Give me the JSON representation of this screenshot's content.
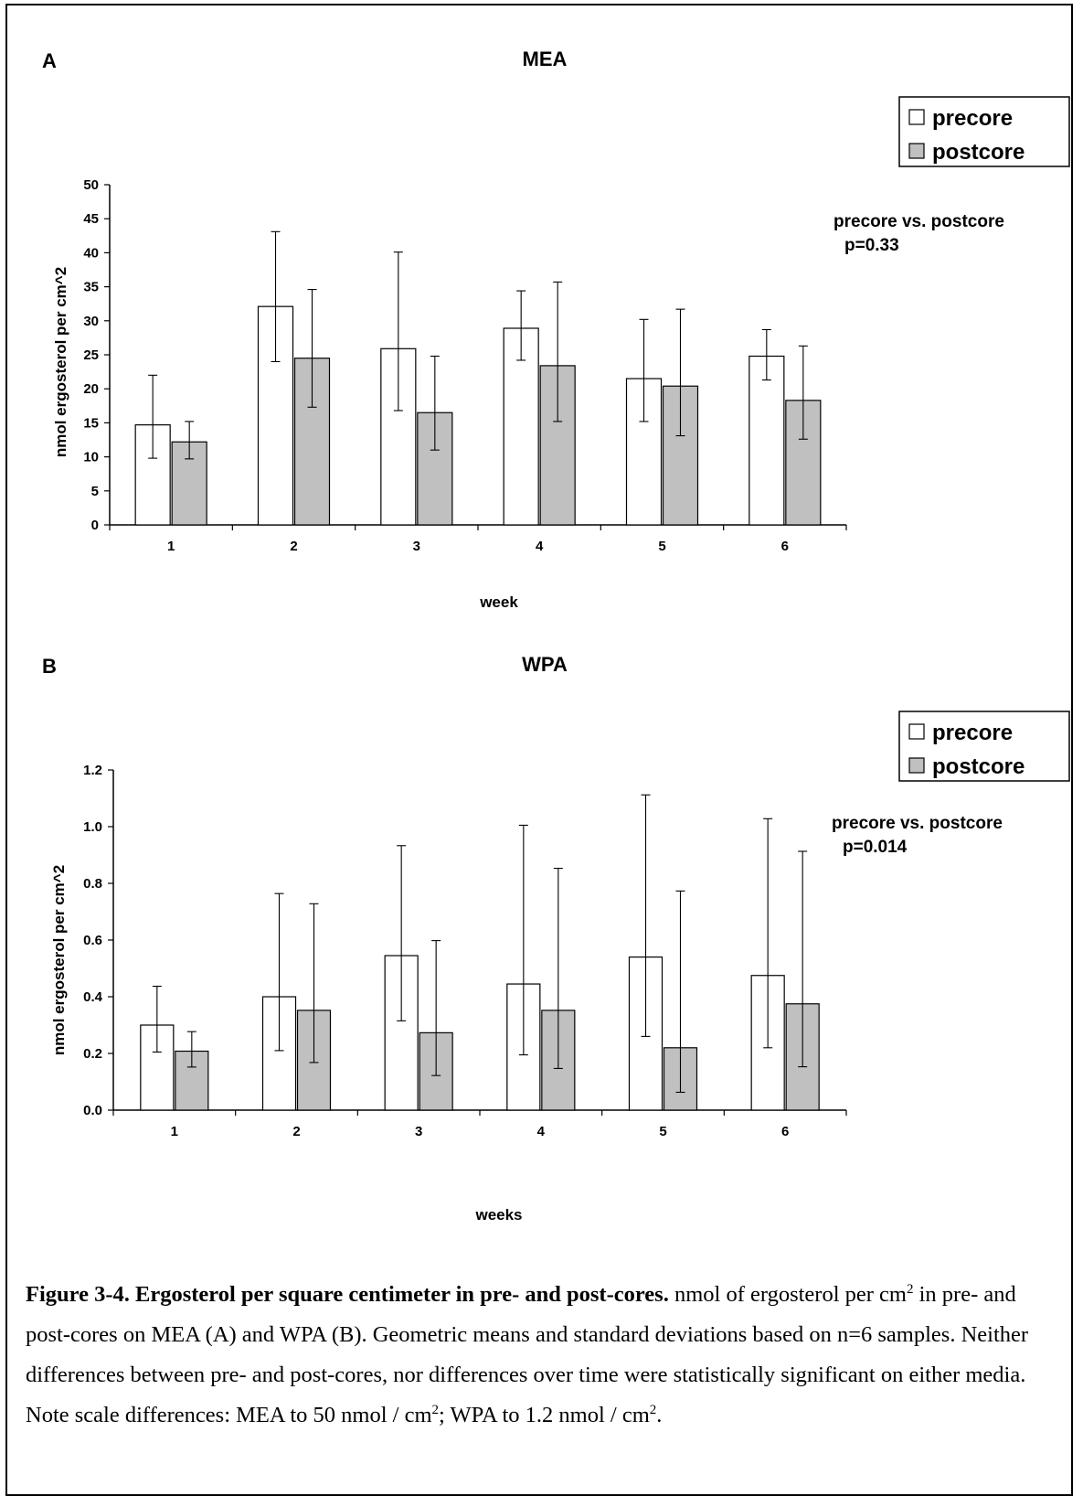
{
  "colors": {
    "precore": "#ffffff",
    "postcore": "#c0c0c0",
    "outline": "#000000"
  },
  "panels": [
    {
      "letter": "A",
      "legend": [
        "precore",
        "postcore"
      ],
      "stat": {
        "line1": "precore vs. postcore",
        "line2": "p=0.33"
      }
    },
    {
      "letter": "B",
      "legend": [
        "precore",
        "postcore"
      ],
      "stat": {
        "line1": "precore vs. postcore",
        "line2": "p=0.014"
      }
    }
  ],
  "chart_data": [
    {
      "type": "bar",
      "title": "MEA",
      "xlabel": "week",
      "ylabel": "nmol ergosterol per cm^2",
      "ylim": [
        0,
        50
      ],
      "yticks": [
        "0",
        "5",
        "10",
        "15",
        "20",
        "25",
        "30",
        "35",
        "40",
        "45",
        "50"
      ],
      "categories": [
        "1",
        "2",
        "3",
        "4",
        "5",
        "6"
      ],
      "legend_position": "top-right",
      "grid": false,
      "series": [
        {
          "name": "precore",
          "values": [
            14.7,
            32.1,
            25.9,
            28.9,
            21.5,
            24.8
          ],
          "err_low": [
            9.8,
            24.0,
            16.8,
            24.2,
            15.2,
            21.3
          ],
          "err_high": [
            22.0,
            43.1,
            40.1,
            34.4,
            30.2,
            28.7
          ]
        },
        {
          "name": "postcore",
          "values": [
            12.2,
            24.5,
            16.5,
            23.4,
            20.4,
            18.3
          ],
          "err_low": [
            9.7,
            17.3,
            11.0,
            15.2,
            13.1,
            12.6
          ],
          "err_high": [
            15.2,
            34.6,
            24.8,
            35.7,
            31.7,
            26.3
          ]
        }
      ]
    },
    {
      "type": "bar",
      "title": "WPA",
      "xlabel": "weeks",
      "ylabel": "nmol ergosterol per cm^2",
      "ylim": [
        0,
        1.2
      ],
      "yticks": [
        "0.0",
        "0.2",
        "0.4",
        "0.6",
        "0.8",
        "1.0",
        "1.2"
      ],
      "categories": [
        "1",
        "2",
        "3",
        "4",
        "5",
        "6"
      ],
      "legend_position": "top-right",
      "grid": false,
      "series": [
        {
          "name": "precore",
          "values": [
            0.3,
            0.4,
            0.545,
            0.445,
            0.54,
            0.475
          ],
          "err_low": [
            0.205,
            0.21,
            0.315,
            0.195,
            0.26,
            0.22
          ],
          "err_high": [
            0.437,
            0.764,
            0.933,
            1.005,
            1.112,
            1.028
          ]
        },
        {
          "name": "postcore",
          "values": [
            0.208,
            0.352,
            0.273,
            0.352,
            0.22,
            0.375
          ],
          "err_low": [
            0.152,
            0.168,
            0.122,
            0.147,
            0.063,
            0.153
          ],
          "err_high": [
            0.277,
            0.728,
            0.598,
            0.853,
            0.773,
            0.913
          ]
        }
      ]
    }
  ],
  "caption": {
    "title": "Figure 3-4.  Ergosterol per square centimeter in pre- and post-cores.",
    "p1": "  nmol of ergosterol per cm",
    "p2": " in pre- and post-cores on MEA (A) and WPA (B).  Geometric means and standard deviations based on n=6 samples.  Neither differences between pre- and post-cores, nor differences over time were statistically significant on either media.  Note scale differences: MEA to 50 nmol / cm",
    "p3": "; WPA to 1.2 nmol / cm",
    "p4": ".",
    "sup": "2"
  }
}
